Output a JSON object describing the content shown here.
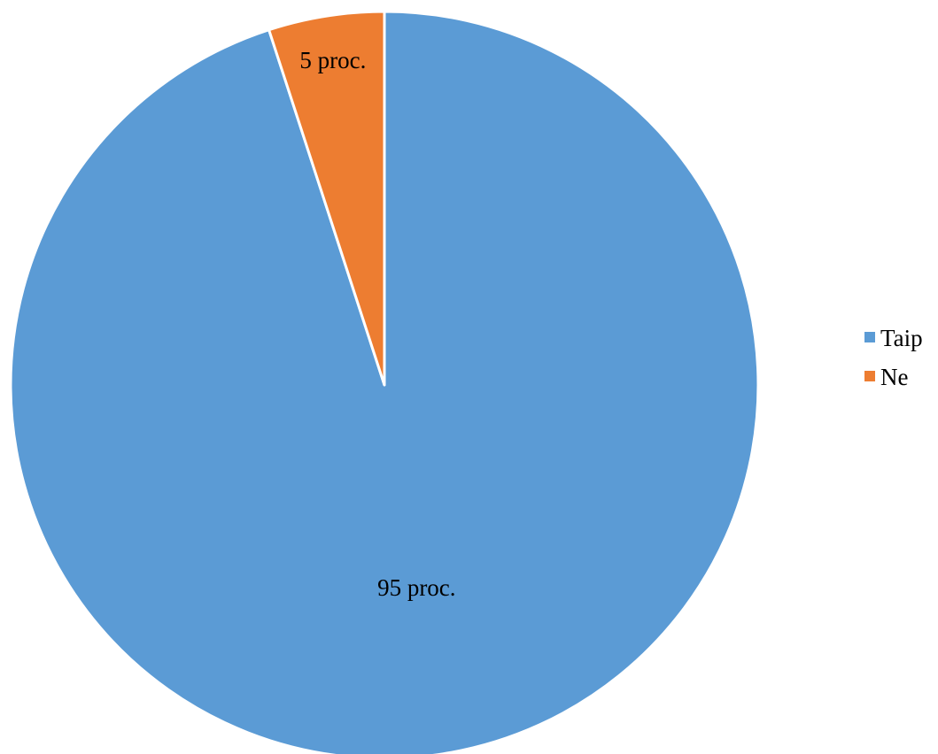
{
  "chart_data": {
    "type": "pie",
    "title": "",
    "categories": [
      "Taip",
      "Ne"
    ],
    "values": [
      95,
      5
    ],
    "data_labels": [
      "95 proc.",
      "5 proc."
    ],
    "colors": [
      "#5B9BD5",
      "#ED7D31"
    ],
    "start_angle": "12 o'clock",
    "direction": "clockwise",
    "legend": {
      "position": "right",
      "entries": [
        "Taip",
        "Ne"
      ]
    }
  }
}
